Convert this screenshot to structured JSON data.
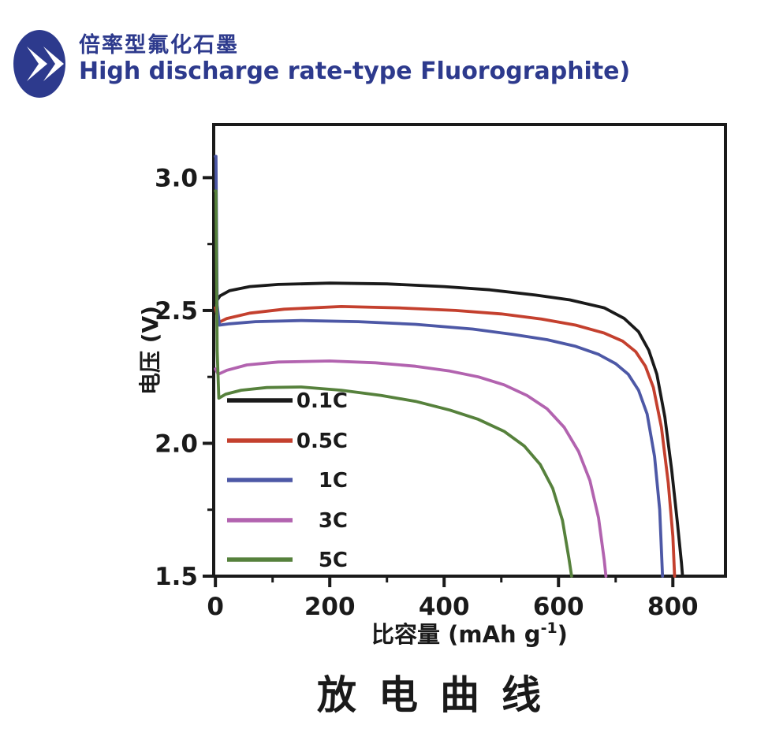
{
  "header": {
    "icon": "double-chevron-right-icon",
    "title_zh": "倍率型氟化石墨",
    "title_en": "High discharge rate-type Fluorographite)",
    "accent_color": "#2d3a8d"
  },
  "caption": "放电曲线",
  "chart_data": {
    "type": "line",
    "title": "",
    "xlabel": "比容量 (mAh g⁻¹)",
    "xlabel_main": "比容量 (mAh g",
    "xlabel_sup": "-1",
    "xlabel_close": ")",
    "ylabel": "电压 (V)",
    "xlim": [
      -3,
      892
    ],
    "ylim": [
      1.5,
      3.2
    ],
    "grid": false,
    "legend_position": "inside-lower-left",
    "x_ticks_major": [
      {
        "v": 0,
        "label": "0"
      },
      {
        "v": 200,
        "label": "200"
      },
      {
        "v": 400,
        "label": "400"
      },
      {
        "v": 600,
        "label": "600"
      },
      {
        "v": 800,
        "label": "800"
      }
    ],
    "x_ticks_minor": [
      100,
      300,
      500,
      700
    ],
    "y_ticks_major": [
      {
        "v": 1.5,
        "label": "1.5"
      },
      {
        "v": 2.0,
        "label": "2.0"
      },
      {
        "v": 2.5,
        "label": "2.5"
      },
      {
        "v": 3.0,
        "label": "3.0"
      }
    ],
    "y_ticks_minor": [
      1.75,
      2.25,
      2.75
    ],
    "series": [
      {
        "name": "0.1C",
        "color": "#1a1a1a",
        "points": [
          [
            0,
            2.53
          ],
          [
            8,
            2.555
          ],
          [
            25,
            2.575
          ],
          [
            60,
            2.59
          ],
          [
            110,
            2.598
          ],
          [
            200,
            2.603
          ],
          [
            300,
            2.6
          ],
          [
            400,
            2.59
          ],
          [
            480,
            2.578
          ],
          [
            560,
            2.558
          ],
          [
            620,
            2.54
          ],
          [
            680,
            2.51
          ],
          [
            715,
            2.47
          ],
          [
            740,
            2.42
          ],
          [
            758,
            2.35
          ],
          [
            772,
            2.26
          ],
          [
            786,
            2.1
          ],
          [
            798,
            1.9
          ],
          [
            808,
            1.7
          ],
          [
            815,
            1.55
          ],
          [
            817,
            1.5
          ]
        ]
      },
      {
        "name": "0.5C",
        "color": "#c4402e",
        "points": [
          [
            0,
            2.51
          ],
          [
            6,
            2.455
          ],
          [
            20,
            2.47
          ],
          [
            60,
            2.49
          ],
          [
            120,
            2.505
          ],
          [
            220,
            2.515
          ],
          [
            320,
            2.51
          ],
          [
            420,
            2.5
          ],
          [
            500,
            2.487
          ],
          [
            570,
            2.468
          ],
          [
            630,
            2.445
          ],
          [
            680,
            2.415
          ],
          [
            712,
            2.385
          ],
          [
            735,
            2.345
          ],
          [
            752,
            2.29
          ],
          [
            766,
            2.21
          ],
          [
            780,
            2.06
          ],
          [
            792,
            1.85
          ],
          [
            800,
            1.65
          ],
          [
            803,
            1.5
          ]
        ]
      },
      {
        "name": "1C",
        "color": "#4d58a6",
        "points": [
          [
            0,
            3.08
          ],
          [
            1,
            3.08
          ],
          [
            3,
            2.52
          ],
          [
            7,
            2.445
          ],
          [
            25,
            2.45
          ],
          [
            70,
            2.458
          ],
          [
            150,
            2.462
          ],
          [
            250,
            2.458
          ],
          [
            350,
            2.448
          ],
          [
            450,
            2.43
          ],
          [
            520,
            2.41
          ],
          [
            580,
            2.39
          ],
          [
            630,
            2.365
          ],
          [
            670,
            2.335
          ],
          [
            700,
            2.3
          ],
          [
            722,
            2.26
          ],
          [
            740,
            2.2
          ],
          [
            755,
            2.11
          ],
          [
            768,
            1.95
          ],
          [
            777,
            1.75
          ],
          [
            782,
            1.5
          ]
        ]
      },
      {
        "name": "3C",
        "color": "#b263af",
        "points": [
          [
            0,
            2.28
          ],
          [
            5,
            2.26
          ],
          [
            20,
            2.275
          ],
          [
            55,
            2.295
          ],
          [
            110,
            2.306
          ],
          [
            200,
            2.31
          ],
          [
            280,
            2.303
          ],
          [
            350,
            2.29
          ],
          [
            410,
            2.272
          ],
          [
            460,
            2.25
          ],
          [
            505,
            2.22
          ],
          [
            545,
            2.18
          ],
          [
            580,
            2.13
          ],
          [
            610,
            2.06
          ],
          [
            635,
            1.97
          ],
          [
            655,
            1.86
          ],
          [
            670,
            1.72
          ],
          [
            680,
            1.56
          ],
          [
            683,
            1.5
          ]
        ]
      },
      {
        "name": "5C",
        "color": "#56813c",
        "points": [
          [
            0,
            2.95
          ],
          [
            1,
            2.95
          ],
          [
            3,
            2.35
          ],
          [
            6,
            2.17
          ],
          [
            18,
            2.185
          ],
          [
            45,
            2.2
          ],
          [
            90,
            2.21
          ],
          [
            150,
            2.212
          ],
          [
            220,
            2.2
          ],
          [
            290,
            2.18
          ],
          [
            350,
            2.158
          ],
          [
            410,
            2.125
          ],
          [
            460,
            2.09
          ],
          [
            505,
            2.045
          ],
          [
            540,
            1.99
          ],
          [
            568,
            1.92
          ],
          [
            590,
            1.83
          ],
          [
            607,
            1.71
          ],
          [
            618,
            1.57
          ],
          [
            623,
            1.5
          ]
        ]
      }
    ]
  }
}
